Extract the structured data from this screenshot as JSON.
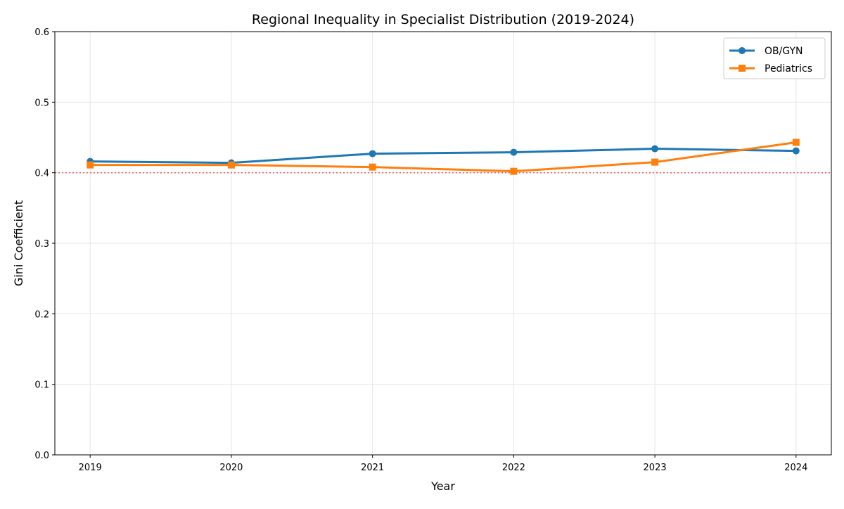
{
  "chart_data": {
    "type": "line",
    "title": "Regional Inequality in Specialist Distribution (2019-2024)",
    "xlabel": "Year",
    "ylabel": "Gini Coefficient",
    "x": [
      2019,
      2020,
      2021,
      2022,
      2023,
      2024
    ],
    "xlim": [
      2018.75,
      2024.25
    ],
    "ylim": [
      0,
      0.6
    ],
    "yticks": [
      0.0,
      0.1,
      0.2,
      0.3,
      0.4,
      0.5,
      0.6
    ],
    "grid": true,
    "legend": "top-right",
    "series": [
      {
        "name": "OB/GYN",
        "values": [
          0.416,
          0.414,
          0.427,
          0.429,
          0.434,
          0.431
        ],
        "color": "#1f77b4",
        "marker": "circle"
      },
      {
        "name": "Pediatrics",
        "values": [
          0.411,
          0.411,
          0.408,
          0.402,
          0.415,
          0.443
        ],
        "color": "#ff7f0e",
        "marker": "square"
      }
    ],
    "reference_line": {
      "y": 0.4,
      "color": "#ff0000",
      "style": "dotted"
    }
  }
}
